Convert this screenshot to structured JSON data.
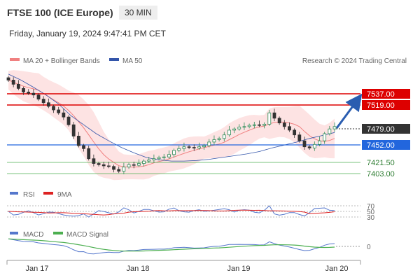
{
  "header": {
    "instrument": "FTSE 100 (ICE Europe)",
    "timeframe": "30 MIN",
    "datetime": "Friday, January 19, 2024 9:47:41 PM CET",
    "watermark": "Research © 2024 Trading Central"
  },
  "legend": {
    "ma20_bb": "MA 20 + Bollinger Bands",
    "ma50": "MA 50",
    "rsi": "RSI",
    "rsi_ma": "9MA",
    "macd": "MACD",
    "macd_signal": "MACD Signal"
  },
  "colors": {
    "ma20": "#f08080",
    "bollinger_fill": "#fde3e3",
    "ma50": "#3355aa",
    "resistance": "#dd0000",
    "support": "#2266dd",
    "target_line": "#4caf50",
    "arrow": "#2a5db0",
    "candle_up": "#2e8b57",
    "candle_down": "#333333",
    "rsi": "#5577cc",
    "rsi_ma": "#dd2222",
    "macd": "#5577cc",
    "macd_signal": "#4caf50",
    "current_price_tag": "#333333"
  },
  "chart_data": {
    "type": "line",
    "x_ticks": [
      "Jan 17",
      "Jan 18",
      "Jan 19",
      "Jan 20"
    ],
    "price_levels": {
      "resistance_2": 7537.0,
      "resistance_1": 7519.0,
      "current": 7479.0,
      "support": 7452.0,
      "target_1": 7421.5,
      "target_2": 7403.0
    },
    "level_labels": [
      "7537.00",
      "7519.00",
      "7479.00",
      "7452.00",
      "7421.50",
      "7403.00"
    ],
    "close_series": [
      7560,
      7553,
      7546,
      7540,
      7538,
      7535,
      7528,
      7522,
      7516,
      7510,
      7505,
      7498,
      7485,
      7466,
      7450,
      7445,
      7428,
      7420,
      7418,
      7416,
      7415,
      7410,
      7407,
      7414,
      7418,
      7417,
      7420,
      7424,
      7426,
      7428,
      7430,
      7431,
      7435,
      7442,
      7445,
      7448,
      7447,
      7446,
      7448,
      7450,
      7456,
      7460,
      7462,
      7468,
      7476,
      7478,
      7481,
      7482,
      7484,
      7485,
      7484,
      7486,
      7505,
      7496,
      7488,
      7482,
      7476,
      7468,
      7458,
      7448,
      7446,
      7452,
      7458,
      7470,
      7478,
      7482
    ],
    "ma50_series": [
      7570,
      7560,
      7548,
      7535,
      7520,
      7500,
      7485,
      7470,
      7458,
      7447,
      7438,
      7430,
      7426,
      7424,
      7424,
      7425,
      7427,
      7430,
      7433,
      7436,
      7440,
      7446,
      7451,
      7456,
      7462,
      7467,
      7472
    ],
    "rsi": {
      "levels": [
        70,
        50,
        30
      ],
      "level_labels": [
        "70",
        "50",
        "30"
      ]
    },
    "macd": {
      "levels": [
        0
      ],
      "level_labels": [
        "0"
      ]
    }
  }
}
